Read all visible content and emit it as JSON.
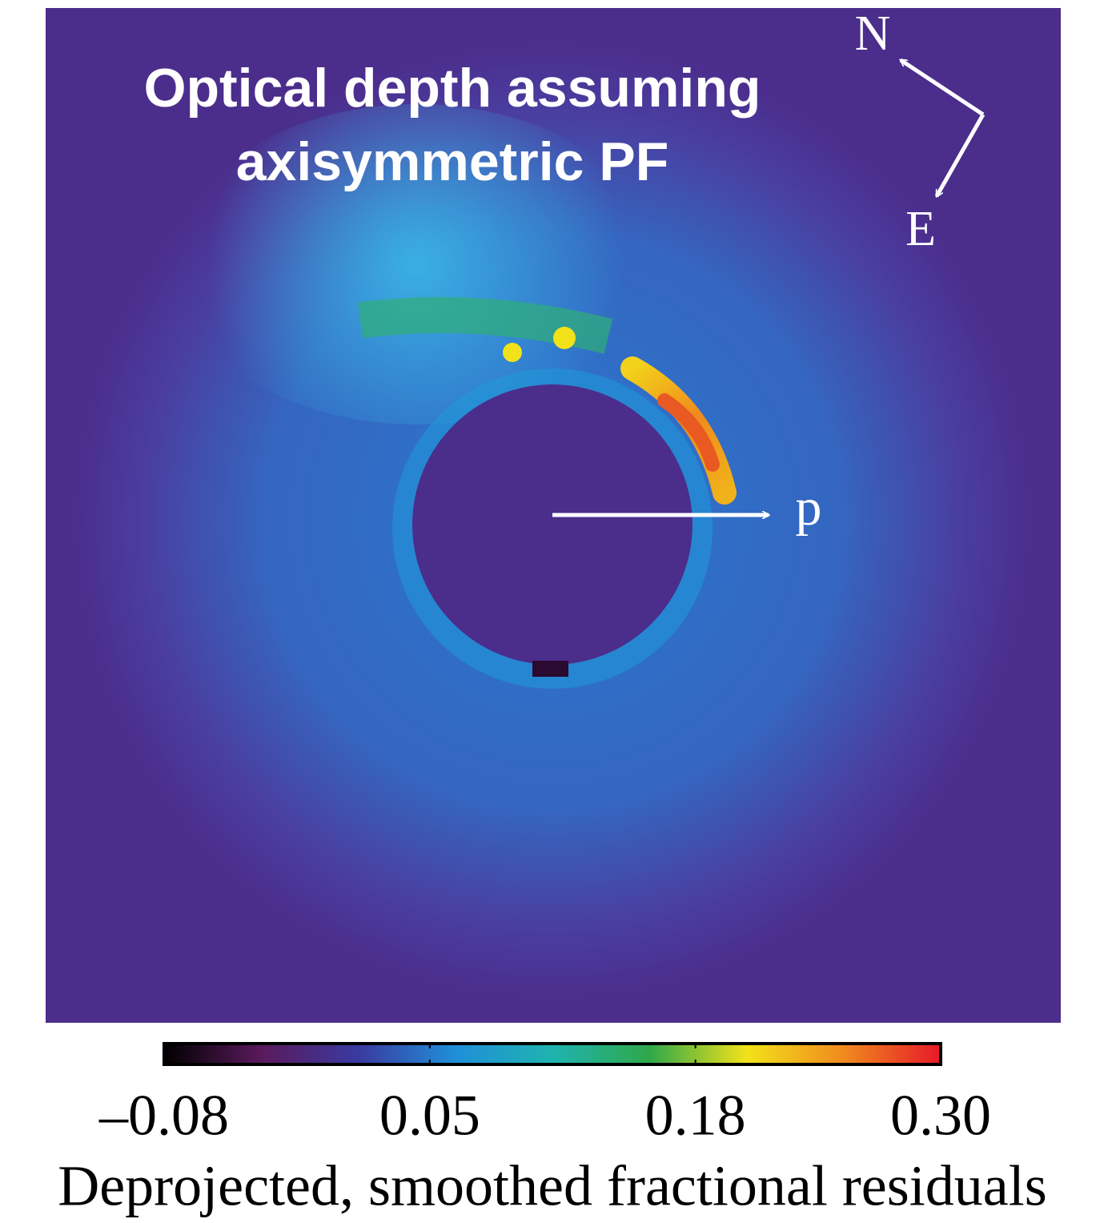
{
  "chart_data": {
    "type": "image",
    "title": [
      "Optical depth assuming",
      "axisymmetric PF"
    ],
    "annotations": {
      "north": "N",
      "east": "E",
      "planet": "p"
    },
    "colorbar": {
      "label": "Deprojected, smoothed fractional residuals",
      "clim": [
        -0.08,
        0.3
      ],
      "ticks": [
        {
          "value": -0.08,
          "label": "–0.08"
        },
        0.05,
        0.18,
        {
          "value": 0.3,
          "label": "0.30"
        }
      ],
      "colormap": [
        "#000000",
        "#5a1a5c",
        "#3a3aa0",
        "#1f8fd8",
        "#1fb3b0",
        "#2fa84a",
        "#f2e21a",
        "#f08a1e",
        "#e8182a"
      ]
    }
  }
}
